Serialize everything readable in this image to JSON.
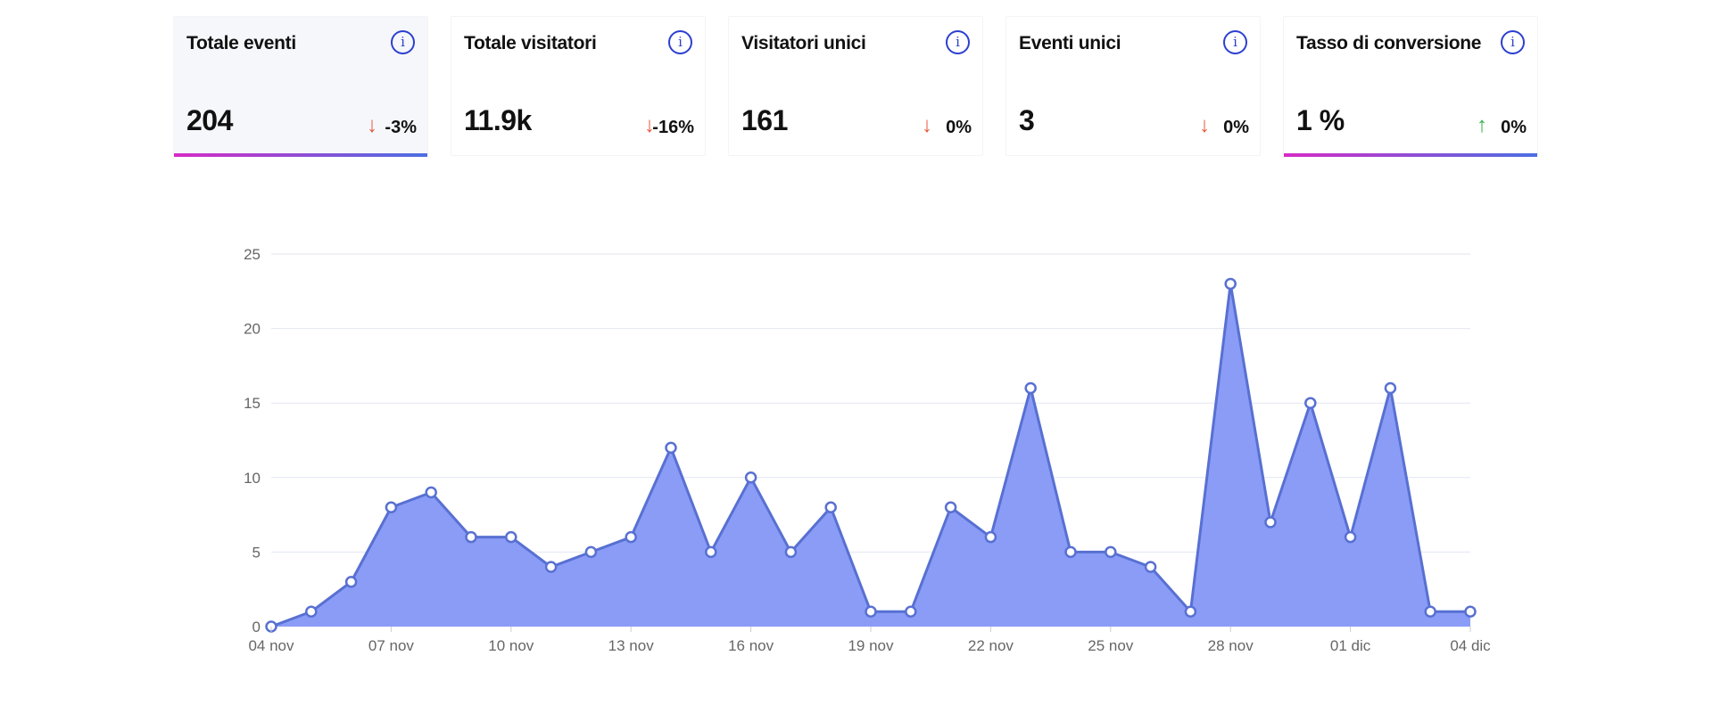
{
  "metrics": [
    {
      "title": "Totale eventi",
      "value": "204",
      "trend": "down",
      "change": "-3%",
      "active": true
    },
    {
      "title": "Totale visitatori",
      "value": "11.9k",
      "trend": "down",
      "change": "-16%"
    },
    {
      "title": "Visitatori unici",
      "value": "161",
      "trend": "down",
      "change": "0%"
    },
    {
      "title": "Eventi unici",
      "value": "3",
      "trend": "down",
      "change": "0%"
    },
    {
      "title": "Tasso di conversione",
      "value": "1 %",
      "trend": "up",
      "change": "0%",
      "selected": true
    }
  ],
  "icons": {
    "info": "info-circle-icon",
    "down": "arrow-down-icon",
    "up": "arrow-up-icon"
  },
  "colors": {
    "fill": "#8a9cf6",
    "stroke": "#5870d2",
    "down": "#e8563a",
    "up": "#2db34a",
    "underline_start": "#d62bc6",
    "underline_end": "#4b6fe3"
  },
  "chart_data": {
    "type": "area",
    "x": [
      "04 nov",
      "05 nov",
      "06 nov",
      "07 nov",
      "08 nov",
      "09 nov",
      "10 nov",
      "11 nov",
      "12 nov",
      "13 nov",
      "14 nov",
      "15 nov",
      "16 nov",
      "17 nov",
      "18 nov",
      "19 nov",
      "20 nov",
      "21 nov",
      "22 nov",
      "23 nov",
      "24 nov",
      "25 nov",
      "26 nov",
      "27 nov",
      "28 nov",
      "29 nov",
      "30 nov",
      "01 dic",
      "02 dic",
      "03 dic",
      "04 dic"
    ],
    "values": [
      0,
      1,
      3,
      8,
      9,
      6,
      6,
      4,
      5,
      6,
      12,
      5,
      10,
      5,
      8,
      1,
      1,
      8,
      6,
      16,
      5,
      5,
      4,
      1,
      23,
      7,
      15,
      6,
      16,
      1,
      1
    ],
    "x_tick_labels": [
      "04 nov",
      "07 nov",
      "10 nov",
      "13 nov",
      "16 nov",
      "19 nov",
      "22 nov",
      "25 nov",
      "28 nov",
      "01 dic",
      "04 dic"
    ],
    "y_ticks": [
      0,
      5,
      10,
      15,
      20,
      25
    ],
    "ylim": [
      0,
      25
    ],
    "grid": "horizontal"
  }
}
